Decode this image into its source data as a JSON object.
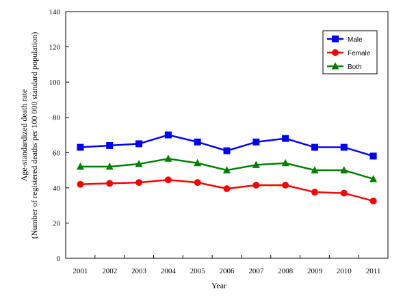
{
  "chart_data": {
    "type": "line",
    "title": "",
    "xlabel": "Year",
    "ylabel_line1": "Age-standardized death rate",
    "ylabel_line2": "(Number of registered deaths per 100 000 standard population)",
    "x": [
      "2001",
      "2002",
      "2003",
      "2004",
      "2005",
      "2006",
      "2007",
      "2008",
      "2009",
      "2010",
      "2011"
    ],
    "ylim": [
      0,
      140
    ],
    "yticks": [
      0,
      20,
      40,
      60,
      80,
      100,
      120,
      140
    ],
    "grid": false,
    "legend_position": "top-right",
    "series": [
      {
        "name": "Male",
        "color": "#0000FF",
        "marker": "square",
        "values": [
          63,
          64,
          65,
          70,
          66,
          61,
          66,
          68,
          63,
          63,
          58
        ]
      },
      {
        "name": "Female",
        "color": "#FF0000",
        "marker": "circle",
        "values": [
          42,
          42.5,
          43,
          44.5,
          43,
          39.5,
          41.5,
          41.5,
          37.5,
          37,
          32.5
        ]
      },
      {
        "name": "Both",
        "color": "#008000",
        "marker": "triangle",
        "values": [
          52,
          52,
          53.5,
          56.5,
          54,
          50,
          53,
          54,
          50,
          50,
          45
        ]
      }
    ]
  }
}
